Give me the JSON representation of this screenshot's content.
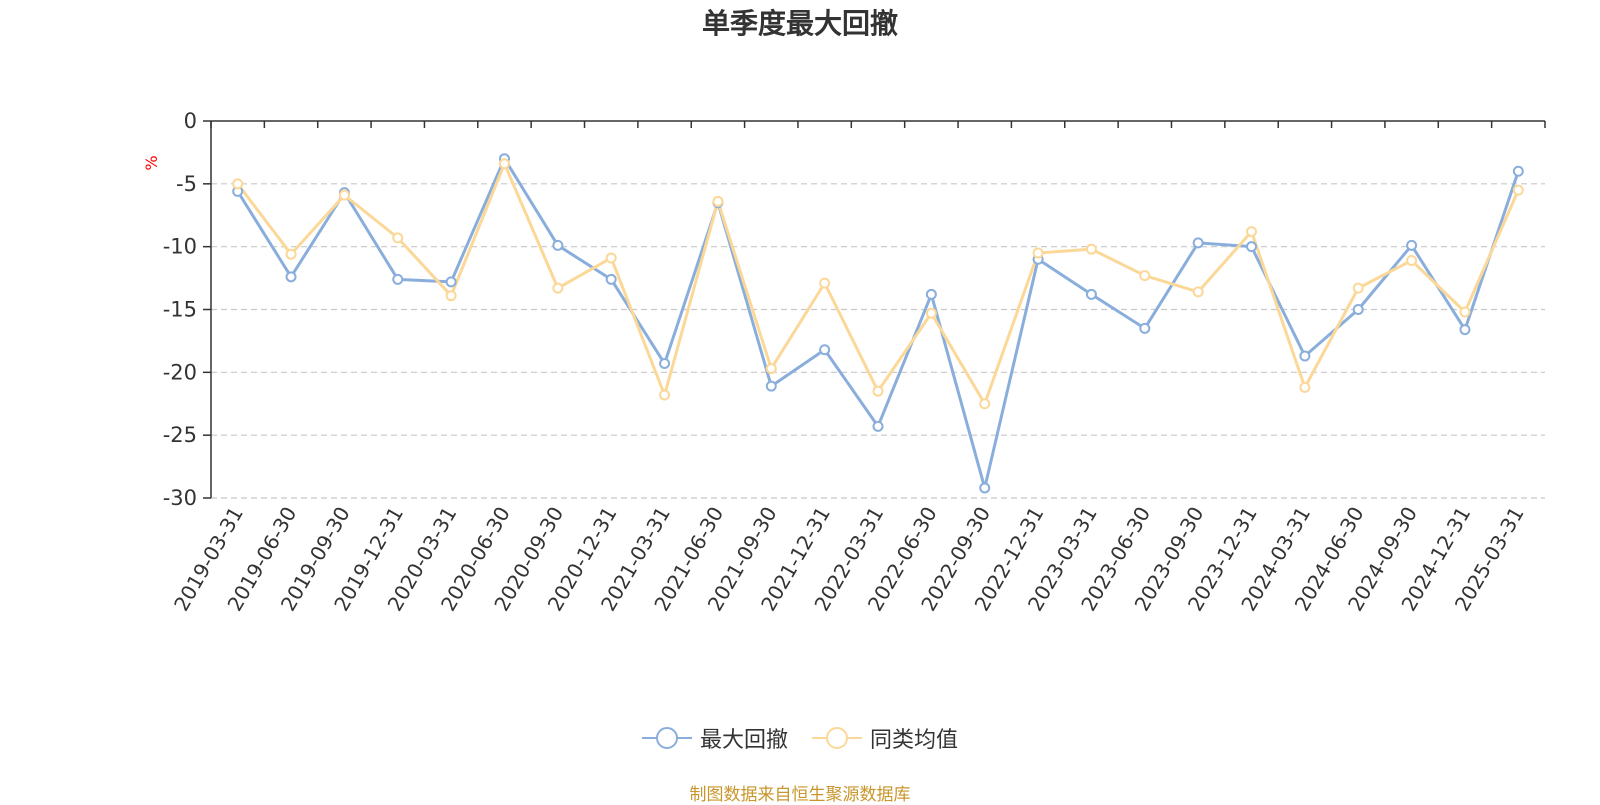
{
  "title": "单季度最大回撤",
  "source_note": "制图数据来自恒生聚源数据库",
  "colors": {
    "series_1": "#8aaedc",
    "series_2": "#fbd898",
    "grid": "#c8c8c8",
    "axis": "#333333",
    "unit_label": "#ff0000"
  },
  "chart_data": {
    "type": "line",
    "title": "单季度最大回撤",
    "xlabel": "",
    "ylabel": "%",
    "ylim": [
      -30,
      0
    ],
    "yticks": [
      0,
      -5,
      -10,
      -15,
      -20,
      -25,
      -30
    ],
    "grid": "horizontal dashed",
    "legend_position": "bottom-center",
    "categories": [
      "2019-03-31",
      "2019-06-30",
      "2019-09-30",
      "2019-12-31",
      "2020-03-31",
      "2020-06-30",
      "2020-09-30",
      "2020-12-31",
      "2021-03-31",
      "2021-06-30",
      "2021-09-30",
      "2021-12-31",
      "2022-03-31",
      "2022-06-30",
      "2022-09-30",
      "2022-12-31",
      "2023-03-31",
      "2023-06-30",
      "2023-09-30",
      "2023-12-31",
      "2024-03-31",
      "2024-06-30",
      "2024-09-30",
      "2024-12-31",
      "2025-03-31"
    ],
    "series": [
      {
        "name": "最大回撤",
        "values": [
          -5.6,
          -12.4,
          -5.7,
          -12.6,
          -12.8,
          -3.0,
          -9.9,
          -12.6,
          -19.3,
          -6.5,
          -21.1,
          -18.2,
          -24.3,
          -13.8,
          -29.2,
          -11.0,
          -13.8,
          -16.5,
          -9.7,
          -10.0,
          -18.7,
          -15.0,
          -9.9,
          -16.6,
          -4.0
        ]
      },
      {
        "name": "同类均值",
        "values": [
          -5.0,
          -10.6,
          -5.9,
          -9.3,
          -13.9,
          -3.4,
          -13.3,
          -10.9,
          -21.8,
          -6.4,
          -19.7,
          -12.9,
          -21.5,
          -15.3,
          -22.5,
          -10.5,
          -10.2,
          -12.3,
          -13.6,
          -8.8,
          -21.2,
          -13.3,
          -11.1,
          -15.2,
          -5.5
        ]
      }
    ]
  }
}
